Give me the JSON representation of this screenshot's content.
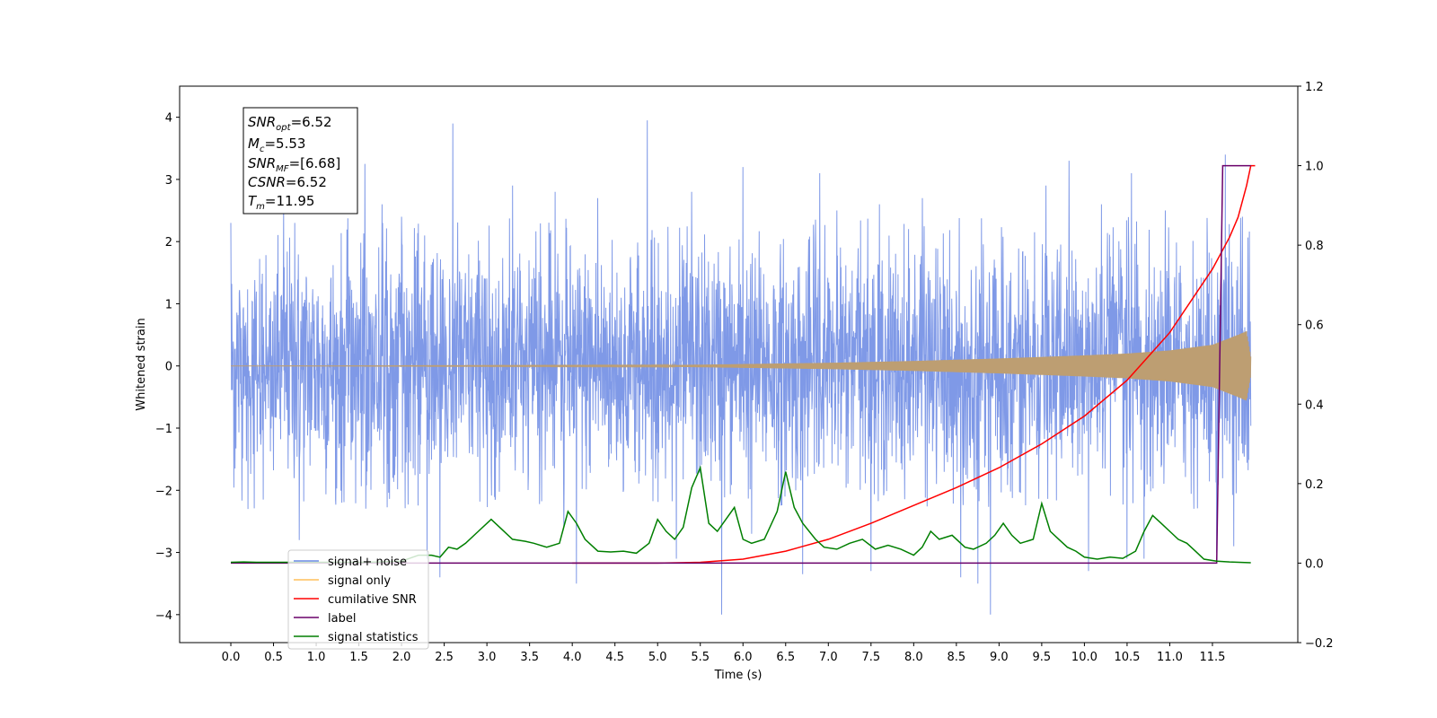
{
  "chart_data": {
    "type": "line",
    "xlabel": "Time (s)",
    "ylabel": "Whitened strain",
    "y2label": "",
    "xlim": [
      -0.6,
      12.5
    ],
    "ylim": [
      -4.45,
      4.5
    ],
    "y2lim": [
      -0.2,
      1.2
    ],
    "grid": false,
    "legend_position": "lower-left",
    "x_ticks": [
      0.0,
      0.5,
      1.0,
      1.5,
      2.0,
      2.5,
      3.0,
      3.5,
      4.0,
      4.5,
      5.0,
      5.5,
      6.0,
      6.5,
      7.0,
      7.5,
      8.0,
      8.5,
      9.0,
      9.5,
      10.0,
      10.5,
      11.0,
      11.5
    ],
    "x_tick_labels": [
      "0.0",
      "0.5",
      "1.0",
      "1.5",
      "2.0",
      "2.5",
      "3.0",
      "3.5",
      "4.0",
      "4.5",
      "5.0",
      "5.5",
      "6.0",
      "6.5",
      "7.0",
      "7.5",
      "8.0",
      "8.5",
      "9.0",
      "9.5",
      "10.0",
      "10.5",
      "11.0",
      "11.5"
    ],
    "y_ticks": [
      -4,
      -3,
      -2,
      -1,
      0,
      1,
      2,
      3,
      4
    ],
    "y_tick_labels": [
      "−4",
      "−3",
      "−2",
      "−1",
      "0",
      "1",
      "2",
      "3",
      "4"
    ],
    "y2_ticks": [
      -0.2,
      0.0,
      0.2,
      0.4,
      0.6,
      0.8,
      1.0,
      1.2
    ],
    "y2_tick_labels": [
      "−0.2",
      "0.0",
      "0.2",
      "0.4",
      "0.6",
      "0.8",
      "1.0",
      "1.2"
    ],
    "annotation": {
      "lines": [
        {
          "base": "SNR",
          "sub": "opt",
          "value": "=6.52"
        },
        {
          "base": "M",
          "sub": "c",
          "value": "=5.53"
        },
        {
          "base": "SNR",
          "sub": "MF",
          "value": "=[6.68]"
        },
        {
          "base": "CSNR",
          "sub": "",
          "value": "=6.52"
        },
        {
          "base": "T",
          "sub": "m",
          "value": "=11.95"
        }
      ]
    },
    "legend": [
      {
        "label": "signal+ noise",
        "color": "#6d8be6"
      },
      {
        "label": "signal only",
        "color": "#ffbf5a"
      },
      {
        "label": "cumilative SNR",
        "color": "#ff0000"
      },
      {
        "label": "label",
        "color": "#6a006a"
      },
      {
        "label": "signal statistics",
        "color": "#007f00"
      }
    ],
    "series": [
      {
        "name": "signal+ noise",
        "axis": "left",
        "color": "#7893e6",
        "style": "noise",
        "x_range": [
          0.0,
          11.95
        ],
        "std": 0.95,
        "peak_points": [
          [
            0.0,
            2.3
          ],
          [
            0.62,
            2.6
          ],
          [
            0.75,
            2.3
          ],
          [
            1.3,
            2.9
          ],
          [
            1.57,
            3.25
          ],
          [
            1.77,
            2.6
          ],
          [
            2.0,
            2.4
          ],
          [
            2.6,
            3.9
          ],
          [
            3.3,
            2.9
          ],
          [
            3.8,
            2.8
          ],
          [
            4.3,
            2.7
          ],
          [
            4.88,
            3.95
          ],
          [
            5.4,
            2.8
          ],
          [
            6.0,
            3.2
          ],
          [
            6.7,
            2.9
          ],
          [
            6.9,
            3.1
          ],
          [
            7.1,
            2.5
          ],
          [
            7.6,
            2.6
          ],
          [
            8.1,
            2.7
          ],
          [
            8.55,
            3.1
          ],
          [
            8.75,
            3.3
          ],
          [
            9.55,
            2.9
          ],
          [
            9.82,
            3.3
          ],
          [
            10.2,
            2.6
          ],
          [
            10.55,
            3.1
          ],
          [
            10.95,
            2.5
          ],
          [
            11.55,
            3.3
          ],
          [
            11.65,
            3.4
          ],
          [
            11.85,
            2.4
          ]
        ],
        "dip_points": [
          [
            0.05,
            -1.65
          ],
          [
            0.2,
            -2.3
          ],
          [
            0.8,
            -2.8
          ],
          [
            1.3,
            -2.2
          ],
          [
            2.3,
            -3.1
          ],
          [
            2.45,
            -3.4
          ],
          [
            3.9,
            -2.6
          ],
          [
            4.05,
            -3.5
          ],
          [
            5.22,
            -3.1
          ],
          [
            5.75,
            -4.0
          ],
          [
            6.1,
            -2.7
          ],
          [
            6.7,
            -3.35
          ],
          [
            7.5,
            -3.3
          ],
          [
            8.55,
            -3.4
          ],
          [
            8.75,
            -3.5
          ],
          [
            8.9,
            -4.0
          ],
          [
            10.05,
            -3.3
          ],
          [
            10.5,
            -3.1
          ],
          [
            10.7,
            -3.1
          ],
          [
            11.55,
            -3.0
          ],
          [
            11.75,
            -2.9
          ]
        ]
      },
      {
        "name": "signal only",
        "axis": "left",
        "color": "#bd9e72",
        "style": "chirp",
        "x_range": [
          0.0,
          11.95
        ],
        "amplitude_points": [
          [
            0.0,
            0.0
          ],
          [
            5.0,
            0.01
          ],
          [
            6.0,
            0.03
          ],
          [
            7.0,
            0.05
          ],
          [
            8.0,
            0.08
          ],
          [
            9.0,
            0.12
          ],
          [
            10.0,
            0.17
          ],
          [
            10.5,
            0.2
          ],
          [
            11.0,
            0.25
          ],
          [
            11.5,
            0.34
          ],
          [
            11.8,
            0.5
          ],
          [
            11.9,
            0.56
          ],
          [
            11.95,
            0.15
          ]
        ]
      },
      {
        "name": "cumilative SNR",
        "axis": "right",
        "color": "#ff0000",
        "points": [
          [
            4.0,
            0.0
          ],
          [
            5.0,
            0.0
          ],
          [
            5.5,
            0.002
          ],
          [
            6.0,
            0.01
          ],
          [
            6.5,
            0.03
          ],
          [
            7.0,
            0.06
          ],
          [
            7.5,
            0.1
          ],
          [
            8.0,
            0.145
          ],
          [
            8.5,
            0.19
          ],
          [
            9.0,
            0.24
          ],
          [
            9.5,
            0.3
          ],
          [
            10.0,
            0.37
          ],
          [
            10.5,
            0.46
          ],
          [
            11.0,
            0.58
          ],
          [
            11.5,
            0.74
          ],
          [
            11.7,
            0.82
          ],
          [
            11.8,
            0.87
          ],
          [
            11.9,
            0.95
          ],
          [
            11.95,
            1.0
          ],
          [
            12.0,
            1.0
          ]
        ]
      },
      {
        "name": "label",
        "axis": "right",
        "color": "#6a006a",
        "points": [
          [
            0.0,
            0.0
          ],
          [
            11.55,
            0.0
          ],
          [
            11.62,
            1.0
          ],
          [
            11.95,
            1.0
          ]
        ]
      },
      {
        "name": "signal statistics",
        "axis": "right",
        "color": "#007f00",
        "points": [
          [
            0.0,
            0.002
          ],
          [
            0.15,
            0.003
          ],
          [
            0.3,
            0.002
          ],
          [
            0.8,
            0.002
          ],
          [
            1.6,
            0.002
          ],
          [
            2.0,
            0.005
          ],
          [
            2.2,
            0.02
          ],
          [
            2.35,
            0.02
          ],
          [
            2.45,
            0.015
          ],
          [
            2.55,
            0.04
          ],
          [
            2.65,
            0.035
          ],
          [
            2.75,
            0.05
          ],
          [
            2.9,
            0.08
          ],
          [
            3.05,
            0.11
          ],
          [
            3.15,
            0.09
          ],
          [
            3.3,
            0.06
          ],
          [
            3.45,
            0.055
          ],
          [
            3.55,
            0.05
          ],
          [
            3.7,
            0.04
          ],
          [
            3.85,
            0.05
          ],
          [
            3.95,
            0.13
          ],
          [
            4.05,
            0.1
          ],
          [
            4.15,
            0.06
          ],
          [
            4.3,
            0.03
          ],
          [
            4.45,
            0.028
          ],
          [
            4.6,
            0.03
          ],
          [
            4.75,
            0.025
          ],
          [
            4.9,
            0.05
          ],
          [
            5.0,
            0.11
          ],
          [
            5.1,
            0.08
          ],
          [
            5.2,
            0.06
          ],
          [
            5.3,
            0.09
          ],
          [
            5.4,
            0.19
          ],
          [
            5.5,
            0.24
          ],
          [
            5.6,
            0.1
          ],
          [
            5.7,
            0.08
          ],
          [
            5.8,
            0.11
          ],
          [
            5.9,
            0.14
          ],
          [
            6.0,
            0.06
          ],
          [
            6.1,
            0.05
          ],
          [
            6.25,
            0.06
          ],
          [
            6.4,
            0.13
          ],
          [
            6.5,
            0.23
          ],
          [
            6.6,
            0.14
          ],
          [
            6.7,
            0.1
          ],
          [
            6.85,
            0.06
          ],
          [
            6.95,
            0.04
          ],
          [
            7.1,
            0.035
          ],
          [
            7.25,
            0.05
          ],
          [
            7.4,
            0.06
          ],
          [
            7.55,
            0.035
          ],
          [
            7.7,
            0.045
          ],
          [
            7.85,
            0.035
          ],
          [
            8.0,
            0.02
          ],
          [
            8.1,
            0.04
          ],
          [
            8.2,
            0.08
          ],
          [
            8.3,
            0.06
          ],
          [
            8.45,
            0.07
          ],
          [
            8.6,
            0.04
          ],
          [
            8.7,
            0.035
          ],
          [
            8.85,
            0.05
          ],
          [
            8.95,
            0.07
          ],
          [
            9.05,
            0.1
          ],
          [
            9.15,
            0.07
          ],
          [
            9.25,
            0.05
          ],
          [
            9.4,
            0.06
          ],
          [
            9.5,
            0.15
          ],
          [
            9.6,
            0.08
          ],
          [
            9.7,
            0.06
          ],
          [
            9.8,
            0.04
          ],
          [
            9.9,
            0.03
          ],
          [
            10.0,
            0.015
          ],
          [
            10.15,
            0.01
          ],
          [
            10.3,
            0.015
          ],
          [
            10.45,
            0.012
          ],
          [
            10.6,
            0.03
          ],
          [
            10.7,
            0.08
          ],
          [
            10.8,
            0.12
          ],
          [
            10.9,
            0.1
          ],
          [
            11.0,
            0.08
          ],
          [
            11.1,
            0.06
          ],
          [
            11.2,
            0.05
          ],
          [
            11.3,
            0.03
          ],
          [
            11.4,
            0.01
          ],
          [
            11.55,
            0.005
          ],
          [
            11.7,
            0.003
          ],
          [
            11.95,
            0.001
          ]
        ]
      }
    ]
  }
}
